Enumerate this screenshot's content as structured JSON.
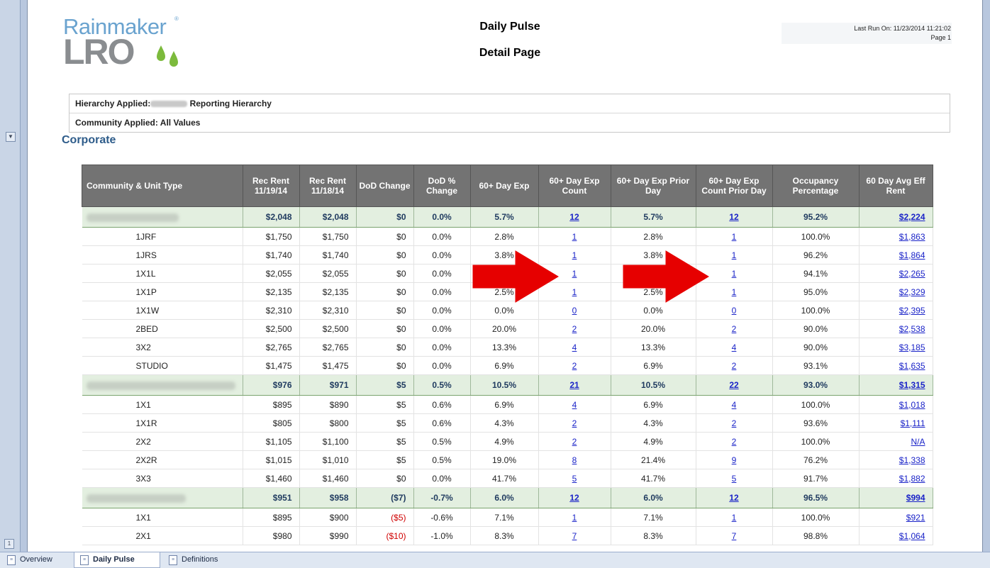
{
  "report": {
    "logo_top": "Rainmaker",
    "logo_bottom": "LRO",
    "title": "Daily Pulse",
    "subtitle": "Detail Page",
    "last_run": "Last Run On: 11/23/2014 11:21:02",
    "page": "Page 1"
  },
  "filters": {
    "hierarchy_prefix": "Hierarchy Applied:",
    "hierarchy_suffix": "Reporting Hierarchy",
    "community": "Community Applied: All Values"
  },
  "section_title": "Corporate",
  "table": {
    "headers": [
      "Community & Unit Type",
      "Rec Rent 11/19/14",
      "Rec Rent 11/18/14",
      "DoD Change",
      "DoD % Change",
      "60+ Day Exp",
      "60+ Day Exp Count",
      "60+ Day Exp Prior Day",
      "60+ Day Exp Count Prior Day",
      "Occupancy Percentage",
      "60 Day Avg Eff Rent"
    ],
    "rows": [
      {
        "kind": "group",
        "name": "",
        "rent_a": "$2,048",
        "rent_b": "$2,048",
        "dod": "$0",
        "dod_pct": "0.0%",
        "exp": "5.7%",
        "exp_count": "12",
        "exp_prior": "5.7%",
        "exp_count_prior": "12",
        "occ": "95.2%",
        "eff_rent": "$2,224"
      },
      {
        "kind": "unit",
        "name": "1JRF",
        "rent_a": "$1,750",
        "rent_b": "$1,750",
        "dod": "$0",
        "dod_pct": "0.0%",
        "exp": "2.8%",
        "exp_count": "1",
        "exp_prior": "2.8%",
        "exp_count_prior": "1",
        "occ": "100.0%",
        "eff_rent": "$1,863"
      },
      {
        "kind": "unit",
        "name": "1JRS",
        "rent_a": "$1,740",
        "rent_b": "$1,740",
        "dod": "$0",
        "dod_pct": "0.0%",
        "exp": "3.8%",
        "exp_count": "1",
        "exp_prior": "3.8%",
        "exp_count_prior": "1",
        "occ": "96.2%",
        "eff_rent": "$1,864"
      },
      {
        "kind": "unit",
        "name": "1X1L",
        "rent_a": "$2,055",
        "rent_b": "$2,055",
        "dod": "$0",
        "dod_pct": "0.0%",
        "exp": "",
        "exp_count": "1",
        "exp_prior": "",
        "exp_count_prior": "1",
        "occ": "94.1%",
        "eff_rent": "$2,265"
      },
      {
        "kind": "unit",
        "name": "1X1P",
        "rent_a": "$2,135",
        "rent_b": "$2,135",
        "dod": "$0",
        "dod_pct": "0.0%",
        "exp": "2.5%",
        "exp_count": "1",
        "exp_prior": "2.5%",
        "exp_count_prior": "1",
        "occ": "95.0%",
        "eff_rent": "$2,329"
      },
      {
        "kind": "unit",
        "name": "1X1W",
        "rent_a": "$2,310",
        "rent_b": "$2,310",
        "dod": "$0",
        "dod_pct": "0.0%",
        "exp": "0.0%",
        "exp_count": "0",
        "exp_prior": "0.0%",
        "exp_count_prior": "0",
        "occ": "100.0%",
        "eff_rent": "$2,395"
      },
      {
        "kind": "unit",
        "name": "2BED",
        "rent_a": "$2,500",
        "rent_b": "$2,500",
        "dod": "$0",
        "dod_pct": "0.0%",
        "exp": "20.0%",
        "exp_count": "2",
        "exp_prior": "20.0%",
        "exp_count_prior": "2",
        "occ": "90.0%",
        "eff_rent": "$2,538"
      },
      {
        "kind": "unit",
        "name": "3X2",
        "rent_a": "$2,765",
        "rent_b": "$2,765",
        "dod": "$0",
        "dod_pct": "0.0%",
        "exp": "13.3%",
        "exp_count": "4",
        "exp_prior": "13.3%",
        "exp_count_prior": "4",
        "occ": "90.0%",
        "eff_rent": "$3,185"
      },
      {
        "kind": "unit",
        "name": "STUDIO",
        "rent_a": "$1,475",
        "rent_b": "$1,475",
        "dod": "$0",
        "dod_pct": "0.0%",
        "exp": "6.9%",
        "exp_count": "2",
        "exp_prior": "6.9%",
        "exp_count_prior": "2",
        "occ": "93.1%",
        "eff_rent": "$1,635"
      },
      {
        "kind": "group",
        "name": "",
        "rent_a": "$976",
        "rent_b": "$971",
        "dod": "$5",
        "dod_pct": "0.5%",
        "exp": "10.5%",
        "exp_count": "21",
        "exp_prior": "10.5%",
        "exp_count_prior": "22",
        "occ": "93.0%",
        "eff_rent": "$1,315"
      },
      {
        "kind": "unit",
        "name": "1X1",
        "rent_a": "$895",
        "rent_b": "$890",
        "dod": "$5",
        "dod_pct": "0.6%",
        "exp": "6.9%",
        "exp_count": "4",
        "exp_prior": "6.9%",
        "exp_count_prior": "4",
        "occ": "100.0%",
        "eff_rent": "$1,018"
      },
      {
        "kind": "unit",
        "name": "1X1R",
        "rent_a": "$805",
        "rent_b": "$800",
        "dod": "$5",
        "dod_pct": "0.6%",
        "exp": "4.3%",
        "exp_count": "2",
        "exp_prior": "4.3%",
        "exp_count_prior": "2",
        "occ": "93.6%",
        "eff_rent": "$1,111"
      },
      {
        "kind": "unit",
        "name": "2X2",
        "rent_a": "$1,105",
        "rent_b": "$1,100",
        "dod": "$5",
        "dod_pct": "0.5%",
        "exp": "4.9%",
        "exp_count": "2",
        "exp_prior": "4.9%",
        "exp_count_prior": "2",
        "occ": "100.0%",
        "eff_rent": "N/A"
      },
      {
        "kind": "unit",
        "name": "2X2R",
        "rent_a": "$1,015",
        "rent_b": "$1,010",
        "dod": "$5",
        "dod_pct": "0.5%",
        "exp": "19.0%",
        "exp_count": "8",
        "exp_prior": "21.4%",
        "exp_count_prior": "9",
        "occ": "76.2%",
        "eff_rent": "$1,338"
      },
      {
        "kind": "unit",
        "name": "3X3",
        "rent_a": "$1,460",
        "rent_b": "$1,460",
        "dod": "$0",
        "dod_pct": "0.0%",
        "exp": "41.7%",
        "exp_count": "5",
        "exp_prior": "41.7%",
        "exp_count_prior": "5",
        "occ": "91.7%",
        "eff_rent": "$1,882"
      },
      {
        "kind": "group",
        "name": "",
        "rent_a": "$951",
        "rent_b": "$958",
        "dod": "($7)",
        "dod_pct": "-0.7%",
        "exp": "6.0%",
        "exp_count": "12",
        "exp_prior": "6.0%",
        "exp_count_prior": "12",
        "occ": "96.5%",
        "eff_rent": "$994"
      },
      {
        "kind": "unit",
        "name": "1X1",
        "rent_a": "$895",
        "rent_b": "$900",
        "dod": "($5)",
        "dod_pct": "-0.6%",
        "exp": "7.1%",
        "exp_count": "1",
        "exp_prior": "7.1%",
        "exp_count_prior": "1",
        "occ": "100.0%",
        "eff_rent": "$921"
      },
      {
        "kind": "unit",
        "name": "2X1",
        "rent_a": "$980",
        "rent_b": "$990",
        "dod": "($10)",
        "dod_pct": "-1.0%",
        "exp": "8.3%",
        "exp_count": "7",
        "exp_prior": "8.3%",
        "exp_count_prior": "7",
        "occ": "98.8%",
        "eff_rent": "$1,064"
      }
    ]
  },
  "tabs": [
    "Overview",
    "Daily Pulse",
    "Definitions"
  ],
  "side": {
    "collapse_glyph": "▼",
    "pager_glyph": "1"
  },
  "colors": {
    "negative": "#d00000",
    "link": "#1a23c8",
    "group_bg": "#e3efe0",
    "header_bg": "#737373",
    "arrow": "#e60000"
  }
}
